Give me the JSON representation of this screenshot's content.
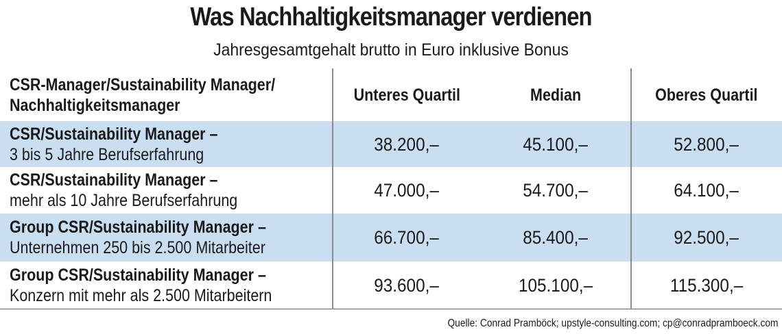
{
  "title": "Was Nachhaltigkeitsmanager verdienen",
  "subtitle": "Jahresgesamtgehalt brutto in Euro inklusive Bonus",
  "colors": {
    "row_shade": "#c9dff1",
    "text": "#1a1a1a",
    "divider": "#8a8a8a"
  },
  "chart_data": {
    "type": "table",
    "title": "Was Nachhaltigkeitsmanager verdienen",
    "subtitle": "Jahresgesamtgehalt brutto in Euro inklusive Bonus",
    "header": {
      "label_line1": "CSR-Manager/Sustainability Manager/",
      "label_line2": "Nachhaltigkeitsmanager",
      "columns": [
        "Unteres Quartil",
        "Median",
        "Oberes Quartil"
      ]
    },
    "rows": [
      {
        "title": "CSR/Sustainability Manager –",
        "detail": "3 bis 5 Jahre Berufserfahrung",
        "values": [
          "38.200,–",
          "45.100,–",
          "52.800,–"
        ]
      },
      {
        "title": "CSR/Sustainability Manager –",
        "detail": "mehr als 10 Jahre Berufserfahrung",
        "values": [
          "47.000,–",
          "54.700,–",
          "64.100,–"
        ]
      },
      {
        "title": "Group CSR/Sustainability Manager –",
        "detail": "Unternehmen 250 bis 2.500 Mitarbeiter",
        "values": [
          "66.700,–",
          "85.400,–",
          "92.500,–"
        ]
      },
      {
        "title": "Group CSR/Sustainability Manager –",
        "detail": "Konzern mit mehr als 2.500 Mitarbeitern",
        "values": [
          "93.600,–",
          "105.100,–",
          "115.300,–"
        ]
      }
    ]
  },
  "source": "Quelle: Conrad Pramböck; upstyle-consulting.com; cp@conradpramboeck.com"
}
